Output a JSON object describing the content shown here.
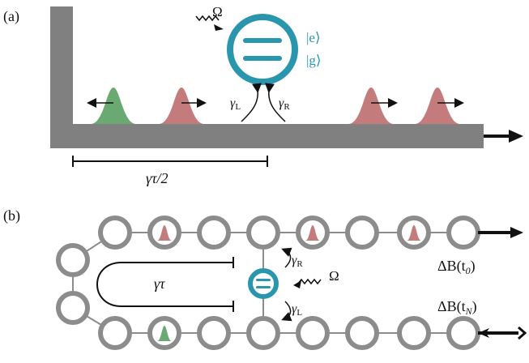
{
  "panel_a": {
    "label": "(a)",
    "omega": "Ω",
    "state_e": "|e⟩",
    "state_g": "|g⟩",
    "gamma": "γ",
    "sub_L": "L",
    "sub_R": "R",
    "delay_label": "γτ/2"
  },
  "panel_b": {
    "label": "(b)",
    "loop_label": "γτ",
    "gamma": "γ",
    "sub_R": "R",
    "sub_L": "L",
    "omega": "Ω",
    "field_top": "ΔB(t",
    "field_top_sub": "0",
    "field_bottom": "ΔB(t",
    "field_bottom_sub": "N"
  },
  "colors": {
    "waveguide": "#808080",
    "emitter": "#2a96ad",
    "pulse_green": "#6aaa72",
    "pulse_red": "#c47b7b",
    "node": "#8c8c8c"
  }
}
